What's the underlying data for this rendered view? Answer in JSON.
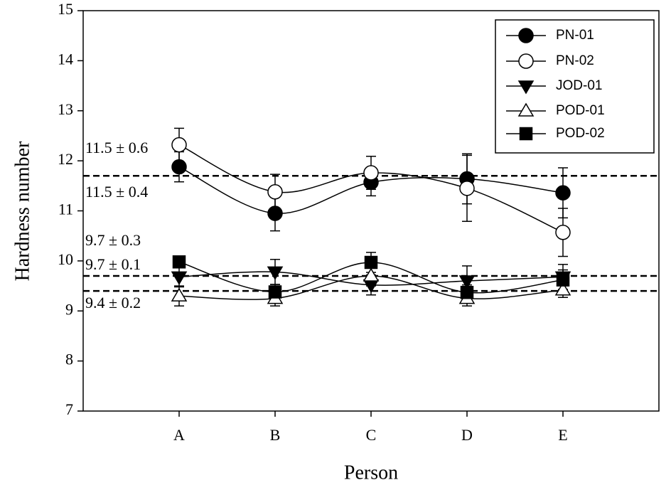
{
  "chart_data": {
    "type": "line",
    "x_label": "Person",
    "y_label": "Hardness number",
    "categories": [
      "A",
      "B",
      "C",
      "D",
      "E"
    ],
    "ylim": [
      7,
      15
    ],
    "yticks": [
      7,
      8,
      9,
      10,
      11,
      12,
      13,
      14,
      15
    ],
    "series": [
      {
        "name": "PN-01",
        "color": "#000",
        "marker": "circle-filled",
        "values": [
          11.88,
          10.95,
          11.57,
          11.64,
          11.36
        ],
        "errors": [
          0.3,
          0.35,
          0.27,
          0.5,
          0.5
        ]
      },
      {
        "name": "PN-02",
        "color": "#000",
        "marker": "circle-open",
        "values": [
          12.32,
          11.38,
          11.76,
          11.45,
          10.57
        ],
        "errors": [
          0.33,
          0.35,
          0.33,
          0.66,
          0.48
        ]
      },
      {
        "name": "JOD-01",
        "color": "#000",
        "marker": "triangle-down-filled",
        "values": [
          9.68,
          9.78,
          9.52,
          9.6,
          9.68
        ],
        "errors": [
          0.2,
          0.25,
          0.2,
          0.3,
          0.25
        ]
      },
      {
        "name": "POD-01",
        "color": "#000",
        "marker": "triangle-up-open",
        "values": [
          9.3,
          9.25,
          9.7,
          9.25,
          9.42
        ],
        "errors": [
          0.2,
          0.15,
          0.2,
          0.15,
          0.15
        ]
      },
      {
        "name": "POD-02",
        "color": "#000",
        "marker": "square-filled",
        "values": [
          9.98,
          9.38,
          9.97,
          9.37,
          9.62
        ],
        "errors": [
          0.1,
          0.15,
          0.2,
          0.15,
          0.2
        ]
      }
    ],
    "reference_lines": [
      11.7,
      9.7,
      9.4
    ],
    "annotations": [
      "11.5 ± 0.6",
      "11.5 ± 0.4",
      "9.7 ± 0.3",
      "9.7 ± 0.1",
      "9.4 ± 0.2"
    ]
  }
}
